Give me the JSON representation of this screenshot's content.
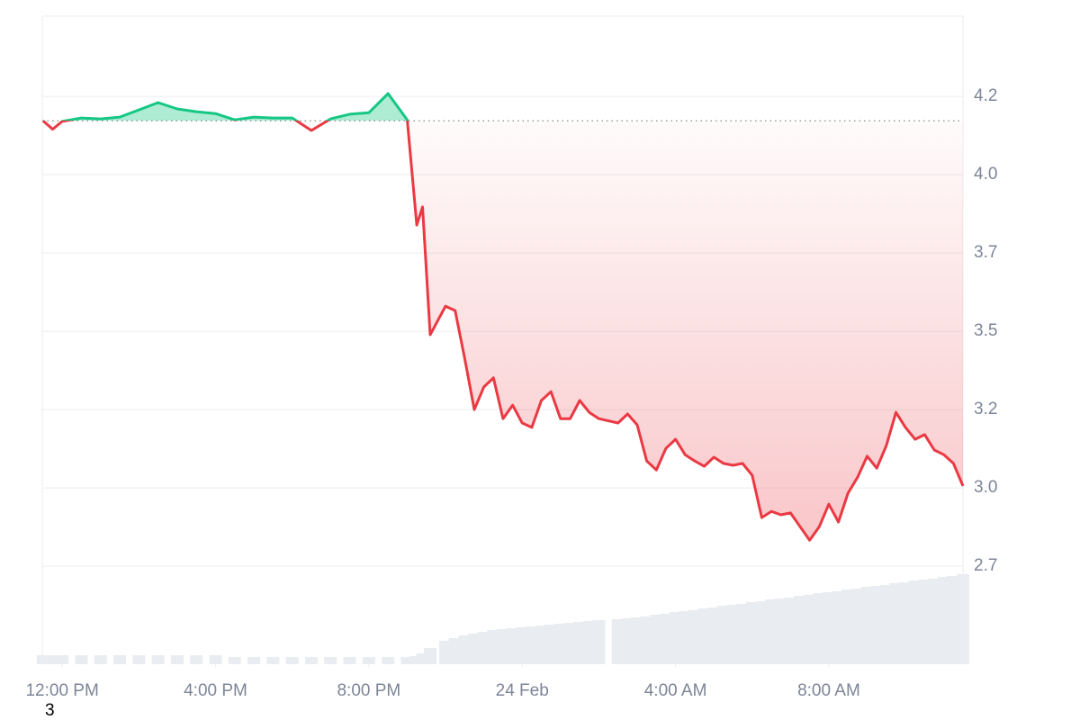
{
  "chart_data": {
    "type": "line",
    "footnote": "3",
    "xlim": [
      -0.52,
      23.5
    ],
    "xticks": [
      {
        "value": 0,
        "label": "12:00 PM"
      },
      {
        "value": 4,
        "label": "4:00 PM"
      },
      {
        "value": 8,
        "label": "8:00 PM"
      },
      {
        "value": 12,
        "label": "24 Feb"
      },
      {
        "value": 16,
        "label": "4:00 AM"
      },
      {
        "value": 20,
        "label": "8:00 AM"
      }
    ],
    "ylim": [
      2.437,
      4.506
    ],
    "yticks": [
      {
        "value": 4.25,
        "label": "4.2"
      },
      {
        "value": 4.0,
        "label": "4.0"
      },
      {
        "value": 3.75,
        "label": "3.7"
      },
      {
        "value": 3.5,
        "label": "3.5"
      },
      {
        "value": 3.25,
        "label": "3.2"
      },
      {
        "value": 3.0,
        "label": "3.0"
      },
      {
        "value": 2.75,
        "label": "2.7"
      }
    ],
    "baseline": 4.172,
    "grid": true,
    "up_color": "#16c784",
    "down_color": "#ea3943",
    "x": [
      -0.5,
      -0.25,
      0,
      0.5,
      1,
      1.5,
      2,
      2.5,
      3,
      3.5,
      4,
      4.5,
      5,
      5.5,
      6,
      6.5,
      7,
      7.5,
      8,
      8.5,
      9,
      9.25,
      9.4,
      9.6,
      10,
      10.25,
      10.5,
      10.75,
      11,
      11.25,
      11.5,
      11.75,
      12,
      12.25,
      12.5,
      12.75,
      13,
      13.25,
      13.5,
      13.75,
      14,
      14.5,
      14.75,
      15,
      15.25,
      15.5,
      15.75,
      16,
      16.25,
      16.5,
      16.75,
      17,
      17.25,
      17.5,
      17.75,
      18,
      18.25,
      18.5,
      18.75,
      19,
      19.25,
      19.5,
      19.75,
      20,
      20.25,
      20.5,
      20.75,
      21,
      21.25,
      21.5,
      21.75,
      22,
      22.25,
      22.5,
      22.75,
      23,
      23.25,
      23.5
    ],
    "values": [
      4.172,
      4.145,
      4.17,
      4.181,
      4.178,
      4.184,
      4.207,
      4.23,
      4.21,
      4.201,
      4.195,
      4.175,
      4.184,
      4.181,
      4.181,
      4.141,
      4.178,
      4.193,
      4.198,
      4.259,
      4.175,
      3.839,
      3.897,
      3.489,
      3.58,
      3.566,
      3.414,
      3.25,
      3.322,
      3.351,
      3.221,
      3.264,
      3.207,
      3.193,
      3.279,
      3.307,
      3.221,
      3.221,
      3.279,
      3.241,
      3.221,
      3.207,
      3.236,
      3.201,
      3.086,
      3.057,
      3.126,
      3.155,
      3.106,
      3.086,
      3.069,
      3.098,
      3.078,
      3.072,
      3.078,
      3.04,
      2.905,
      2.925,
      2.914,
      2.92,
      2.876,
      2.833,
      2.876,
      2.948,
      2.891,
      2.983,
      3.034,
      3.101,
      3.063,
      3.135,
      3.241,
      3.193,
      3.155,
      3.17,
      3.121,
      3.106,
      3.078,
      3.006
    ],
    "y2lim": [
      0,
      720
    ],
    "volume_color": "#e9ecf1",
    "volume": [
      10,
      10,
      10,
      10,
      10,
      10,
      10,
      10,
      10,
      10,
      10,
      8,
      8,
      8,
      8,
      8,
      8,
      8,
      8,
      8,
      8,
      9,
      12,
      18,
      26,
      29,
      32,
      34,
      36,
      38,
      39,
      40,
      41,
      42,
      43,
      44,
      45,
      46,
      47,
      48,
      49,
      50,
      51,
      52,
      53,
      55,
      56,
      58,
      59,
      60,
      62,
      63,
      65,
      66,
      67,
      69,
      70,
      72,
      73,
      74,
      76,
      77,
      79,
      80,
      81,
      83,
      84,
      86,
      87,
      88,
      90,
      91,
      93,
      94,
      95,
      97,
      98,
      100
    ]
  }
}
